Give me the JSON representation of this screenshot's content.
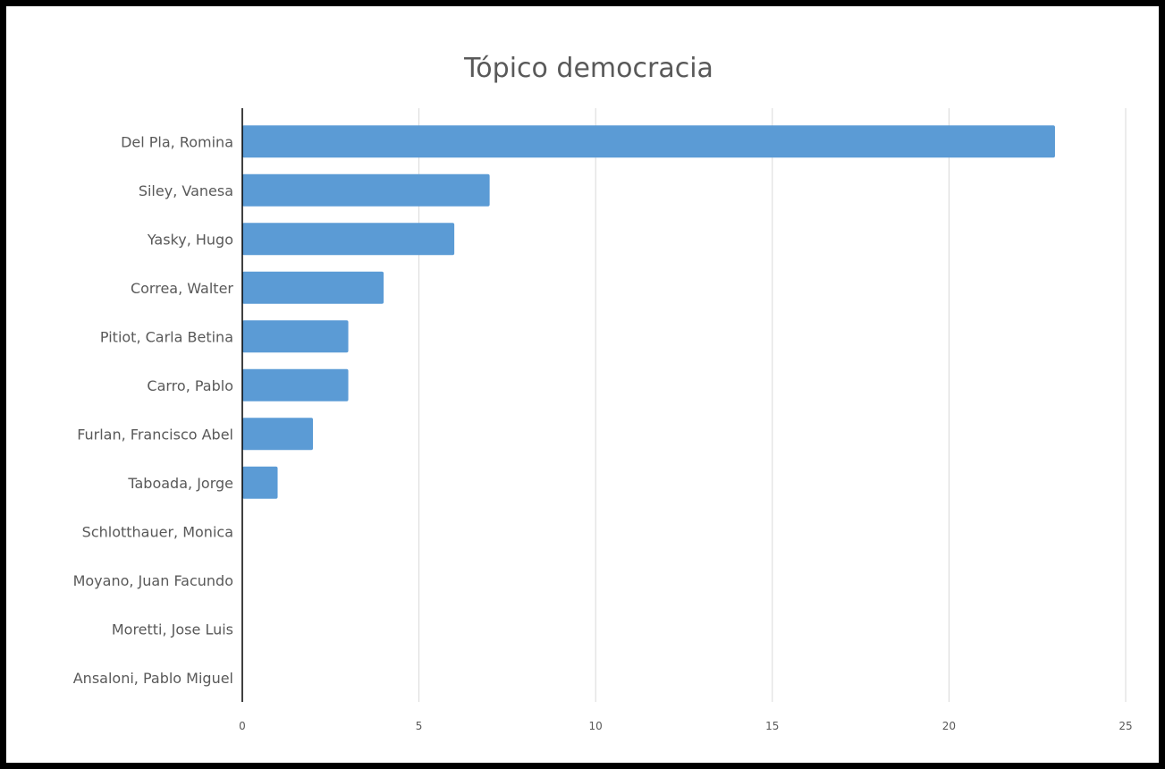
{
  "chart_data": {
    "type": "bar",
    "orientation": "horizontal",
    "title": "Tópico democracia",
    "categories": [
      "Del Pla, Romina",
      "Siley, Vanesa",
      "Yasky, Hugo",
      "Correa, Walter",
      "Pitiot, Carla Betina",
      "Carro, Pablo",
      "Furlan, Francisco Abel",
      "Taboada, Jorge",
      "Schlotthauer, Monica",
      "Moyano, Juan Facundo",
      "Moretti, Jose Luis",
      "Ansaloni, Pablo Miguel"
    ],
    "values": [
      23,
      7,
      6,
      4,
      3,
      3,
      2,
      1,
      0,
      0,
      0,
      0
    ],
    "xlabel": "",
    "ylabel": "",
    "xlim": [
      0,
      25
    ],
    "xticks": [
      "0",
      "5",
      "10",
      "15",
      "20",
      "25"
    ],
    "grid": "vertical",
    "legend": "none",
    "bar_color": "#5B9BD5"
  }
}
